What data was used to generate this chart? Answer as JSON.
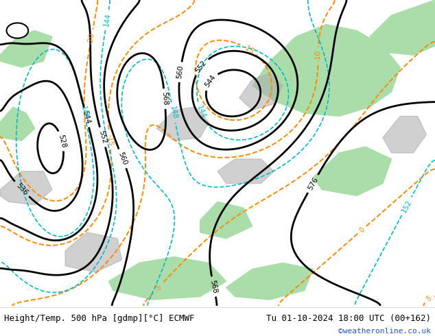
{
  "title_left": "Height/Temp. 500 hPa [gdmp][°C] ECMWF",
  "title_right": "Tu 01-10-2024 18:00 UTC (00+162)",
  "watermark": "©weatheronline.co.uk",
  "bg_color": "#ffffff",
  "map_bg": "#ffffff",
  "green_color": "#aaddaa",
  "figsize": [
    6.34,
    4.9
  ],
  "dpi": 100,
  "bottom_bar_color": "#ffffff",
  "title_left_color": "#000000",
  "title_right_color": "#000000",
  "watermark_color": "#2255cc",
  "contour_black_color": "#000000",
  "contour_orange_color": "#ff8800",
  "contour_cyan_color": "#00bbcc",
  "land_gray": "#aaaaaa",
  "text_fontsize": 9,
  "watermark_fontsize": 8,
  "label_fontsize": 7.5
}
